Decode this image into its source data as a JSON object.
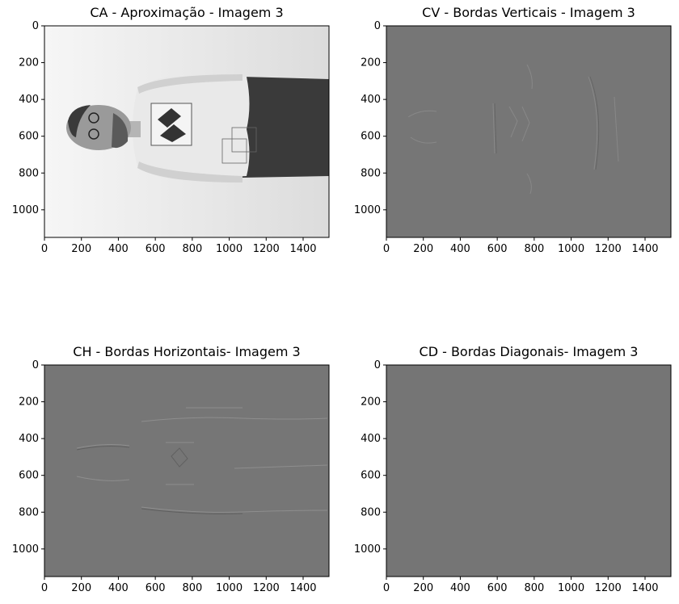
{
  "figure": {
    "panels": [
      {
        "id": "ca",
        "title": "CA - Aproximação - Imagem 3",
        "image_kind": "approximation-grayscale-photo",
        "x_ticks": [
          "0",
          "200",
          "400",
          "600",
          "800",
          "1000",
          "1200",
          "1400"
        ],
        "y_ticks": [
          "0",
          "200",
          "400",
          "600",
          "800",
          "1000"
        ]
      },
      {
        "id": "cv",
        "title": "CV - Bordas Verticais - Imagem 3",
        "image_kind": "vertical-edges",
        "x_ticks": [
          "0",
          "200",
          "400",
          "600",
          "800",
          "1000",
          "1200",
          "1400"
        ],
        "y_ticks": [
          "0",
          "200",
          "400",
          "600",
          "800",
          "1000"
        ]
      },
      {
        "id": "ch",
        "title": "CH - Bordas Horizontais- Imagem 3",
        "image_kind": "horizontal-edges",
        "x_ticks": [
          "0",
          "200",
          "400",
          "600",
          "800",
          "1000",
          "1200",
          "1400"
        ],
        "y_ticks": [
          "0",
          "200",
          "400",
          "600",
          "800",
          "1000"
        ]
      },
      {
        "id": "cd",
        "title": "CD - Bordas Diagonais- Imagem 3",
        "image_kind": "diagonal-edges",
        "x_ticks": [
          "0",
          "200",
          "400",
          "600",
          "800",
          "1000",
          "1200",
          "1400"
        ],
        "y_ticks": [
          "0",
          "200",
          "400",
          "600",
          "800",
          "1000"
        ]
      }
    ],
    "colors": {
      "edge_background": "#757575",
      "photo_background": "#f2f2f2",
      "shirt": "#e8e8e8",
      "pants": "#3a3a3a"
    }
  }
}
